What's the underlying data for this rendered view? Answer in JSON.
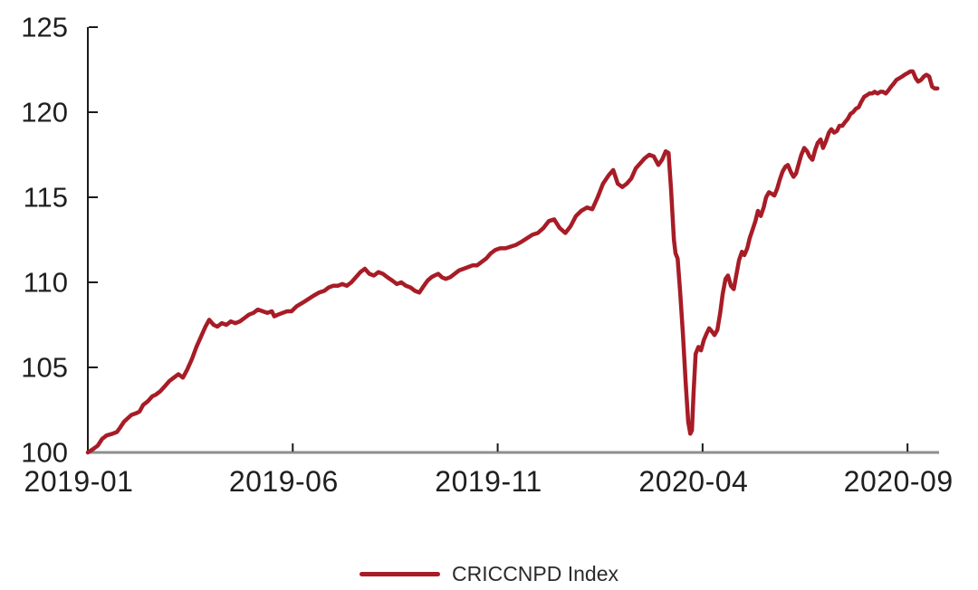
{
  "chart_data": {
    "type": "line",
    "title": "",
    "xlabel": "",
    "ylabel": "",
    "x_unit": "months since 2019-01 (0 = 2019-01, 20 = 2020-09)",
    "xlim": [
      0,
      20.77
    ],
    "ylim": [
      100,
      125
    ],
    "grid": false,
    "legend_position": "bottom-center",
    "x_ticks": [
      {
        "pos": 0,
        "label": "2019-01"
      },
      {
        "pos": 5,
        "label": "2019-06"
      },
      {
        "pos": 10,
        "label": "2019-11"
      },
      {
        "pos": 15,
        "label": "2020-04"
      },
      {
        "pos": 20,
        "label": "2020-09"
      }
    ],
    "y_ticks": [
      100,
      105,
      110,
      115,
      120,
      125
    ],
    "colors": {
      "line": "#a71c26",
      "y_axis": "#1a1a1a",
      "x_baseline": "#8e8e8e",
      "tick": "#1a1a1a",
      "label_text": "#1f1f1f"
    },
    "series": [
      {
        "name": "CRICCNPD Index",
        "color": "#a71c26",
        "x": [
          0,
          0.13,
          0.24,
          0.35,
          0.46,
          0.6,
          0.71,
          0.77,
          0.88,
          0.97,
          1.06,
          1.17,
          1.26,
          1.35,
          1.46,
          1.57,
          1.66,
          1.77,
          1.88,
          1.99,
          2.1,
          2.21,
          2.32,
          2.43,
          2.54,
          2.65,
          2.76,
          2.87,
          2.96,
          3.07,
          3.16,
          3.27,
          3.38,
          3.49,
          3.6,
          3.71,
          3.82,
          3.93,
          4.04,
          4.15,
          4.27,
          4.38,
          4.49,
          4.55,
          4.64,
          4.75,
          4.86,
          4.97,
          5.1,
          5.24,
          5.37,
          5.5,
          5.64,
          5.77,
          5.88,
          5.99,
          6.1,
          6.21,
          6.32,
          6.43,
          6.54,
          6.65,
          6.76,
          6.87,
          6.98,
          7.09,
          7.2,
          7.31,
          7.43,
          7.54,
          7.65,
          7.76,
          7.87,
          7.98,
          8.09,
          8.2,
          8.29,
          8.38,
          8.46,
          8.55,
          8.64,
          8.73,
          8.84,
          8.95,
          9.06,
          9.17,
          9.28,
          9.39,
          9.5,
          9.61,
          9.72,
          9.83,
          9.94,
          10.06,
          10.19,
          10.32,
          10.45,
          10.59,
          10.72,
          10.85,
          10.98,
          11.12,
          11.25,
          11.38,
          11.51,
          11.65,
          11.78,
          11.91,
          12.04,
          12.18,
          12.31,
          12.44,
          12.57,
          12.71,
          12.82,
          12.93,
          13.04,
          13.15,
          13.26,
          13.37,
          13.48,
          13.59,
          13.7,
          13.81,
          13.92,
          14.01,
          14.1,
          14.17,
          14.23,
          14.3,
          14.34,
          14.39,
          14.45,
          14.52,
          14.59,
          14.65,
          14.7,
          14.74,
          14.78,
          14.83,
          14.9,
          14.96,
          15.03,
          15.1,
          15.16,
          15.23,
          15.29,
          15.36,
          15.43,
          15.49,
          15.56,
          15.62,
          15.69,
          15.76,
          15.82,
          15.89,
          15.96,
          16.02,
          16.09,
          16.15,
          16.22,
          16.29,
          16.35,
          16.42,
          16.49,
          16.55,
          16.62,
          16.69,
          16.75,
          16.82,
          16.88,
          16.95,
          17.02,
          17.08,
          17.15,
          17.22,
          17.28,
          17.35,
          17.41,
          17.48,
          17.55,
          17.61,
          17.68,
          17.75,
          17.81,
          17.88,
          17.94,
          18.01,
          18.08,
          18.14,
          18.21,
          18.28,
          18.34,
          18.41,
          18.47,
          18.54,
          18.61,
          18.67,
          18.74,
          18.81,
          18.87,
          18.94,
          19.01,
          19.07,
          19.14,
          19.2,
          19.27,
          19.34,
          19.4,
          19.47,
          19.54,
          19.6,
          19.67,
          19.73,
          19.8,
          19.87,
          19.93,
          20,
          20.07,
          20.13,
          20.2,
          20.26,
          20.33,
          20.4,
          20.46,
          20.53,
          20.6,
          20.66,
          20.73
        ],
        "values": [
          100,
          100.2,
          100.4,
          100.8,
          101,
          101.1,
          101.2,
          101.4,
          101.8,
          102,
          102.2,
          102.3,
          102.4,
          102.8,
          103,
          103.3,
          103.4,
          103.6,
          103.9,
          104.2,
          104.4,
          104.6,
          104.4,
          104.9,
          105.5,
          106.2,
          106.8,
          107.4,
          107.8,
          107.5,
          107.4,
          107.6,
          107.5,
          107.7,
          107.6,
          107.7,
          107.9,
          108.1,
          108.2,
          108.4,
          108.3,
          108.2,
          108.3,
          108,
          108.1,
          108.2,
          108.3,
          108.3,
          108.6,
          108.8,
          109,
          109.2,
          109.4,
          109.5,
          109.7,
          109.8,
          109.8,
          109.9,
          109.8,
          110,
          110.3,
          110.6,
          110.8,
          110.5,
          110.4,
          110.6,
          110.5,
          110.3,
          110.1,
          109.9,
          110,
          109.8,
          109.7,
          109.5,
          109.4,
          109.8,
          110.1,
          110.3,
          110.4,
          110.5,
          110.3,
          110.2,
          110.3,
          110.5,
          110.7,
          110.8,
          110.9,
          111,
          111,
          111.2,
          111.4,
          111.7,
          111.9,
          112,
          112,
          112.1,
          112.2,
          112.4,
          112.6,
          112.8,
          112.9,
          113.2,
          113.6,
          113.7,
          113.2,
          112.9,
          113.3,
          113.9,
          114.2,
          114.4,
          114.3,
          115,
          115.8,
          116.3,
          116.6,
          115.8,
          115.6,
          115.8,
          116.1,
          116.7,
          117,
          117.3,
          117.5,
          117.4,
          116.9,
          117.2,
          117.7,
          117.6,
          115.5,
          112.5,
          111.7,
          111.4,
          109.5,
          107,
          104,
          101.8,
          101.1,
          101.3,
          103.5,
          105.8,
          106.2,
          106,
          106.6,
          107,
          107.3,
          107.1,
          106.9,
          107.2,
          108.2,
          109.3,
          110.2,
          110.4,
          109.8,
          109.6,
          110.4,
          111.3,
          111.8,
          111.6,
          112,
          112.6,
          113.1,
          113.6,
          114.2,
          113.9,
          114.4,
          115,
          115.3,
          115.2,
          115.1,
          115.5,
          116,
          116.5,
          116.8,
          116.9,
          116.5,
          116.2,
          116.4,
          117,
          117.5,
          117.9,
          117.7,
          117.4,
          117.2,
          117.8,
          118.2,
          118.4,
          117.9,
          118.3,
          118.8,
          119,
          118.8,
          118.9,
          119.2,
          119.2,
          119.4,
          119.6,
          119.9,
          120,
          120.2,
          120.3,
          120.6,
          120.9,
          121,
          121.1,
          121.1,
          121.2,
          121.1,
          121.2,
          121.2,
          121.1,
          121.3,
          121.5,
          121.7,
          121.9,
          122,
          122.1,
          122.2,
          122.3,
          122.4,
          122.4,
          122,
          121.8,
          121.9,
          122.1,
          122.2,
          122.1,
          121.5,
          121.4,
          121.4
        ]
      }
    ]
  },
  "legend": {
    "label": "CRICCNPD Index"
  }
}
